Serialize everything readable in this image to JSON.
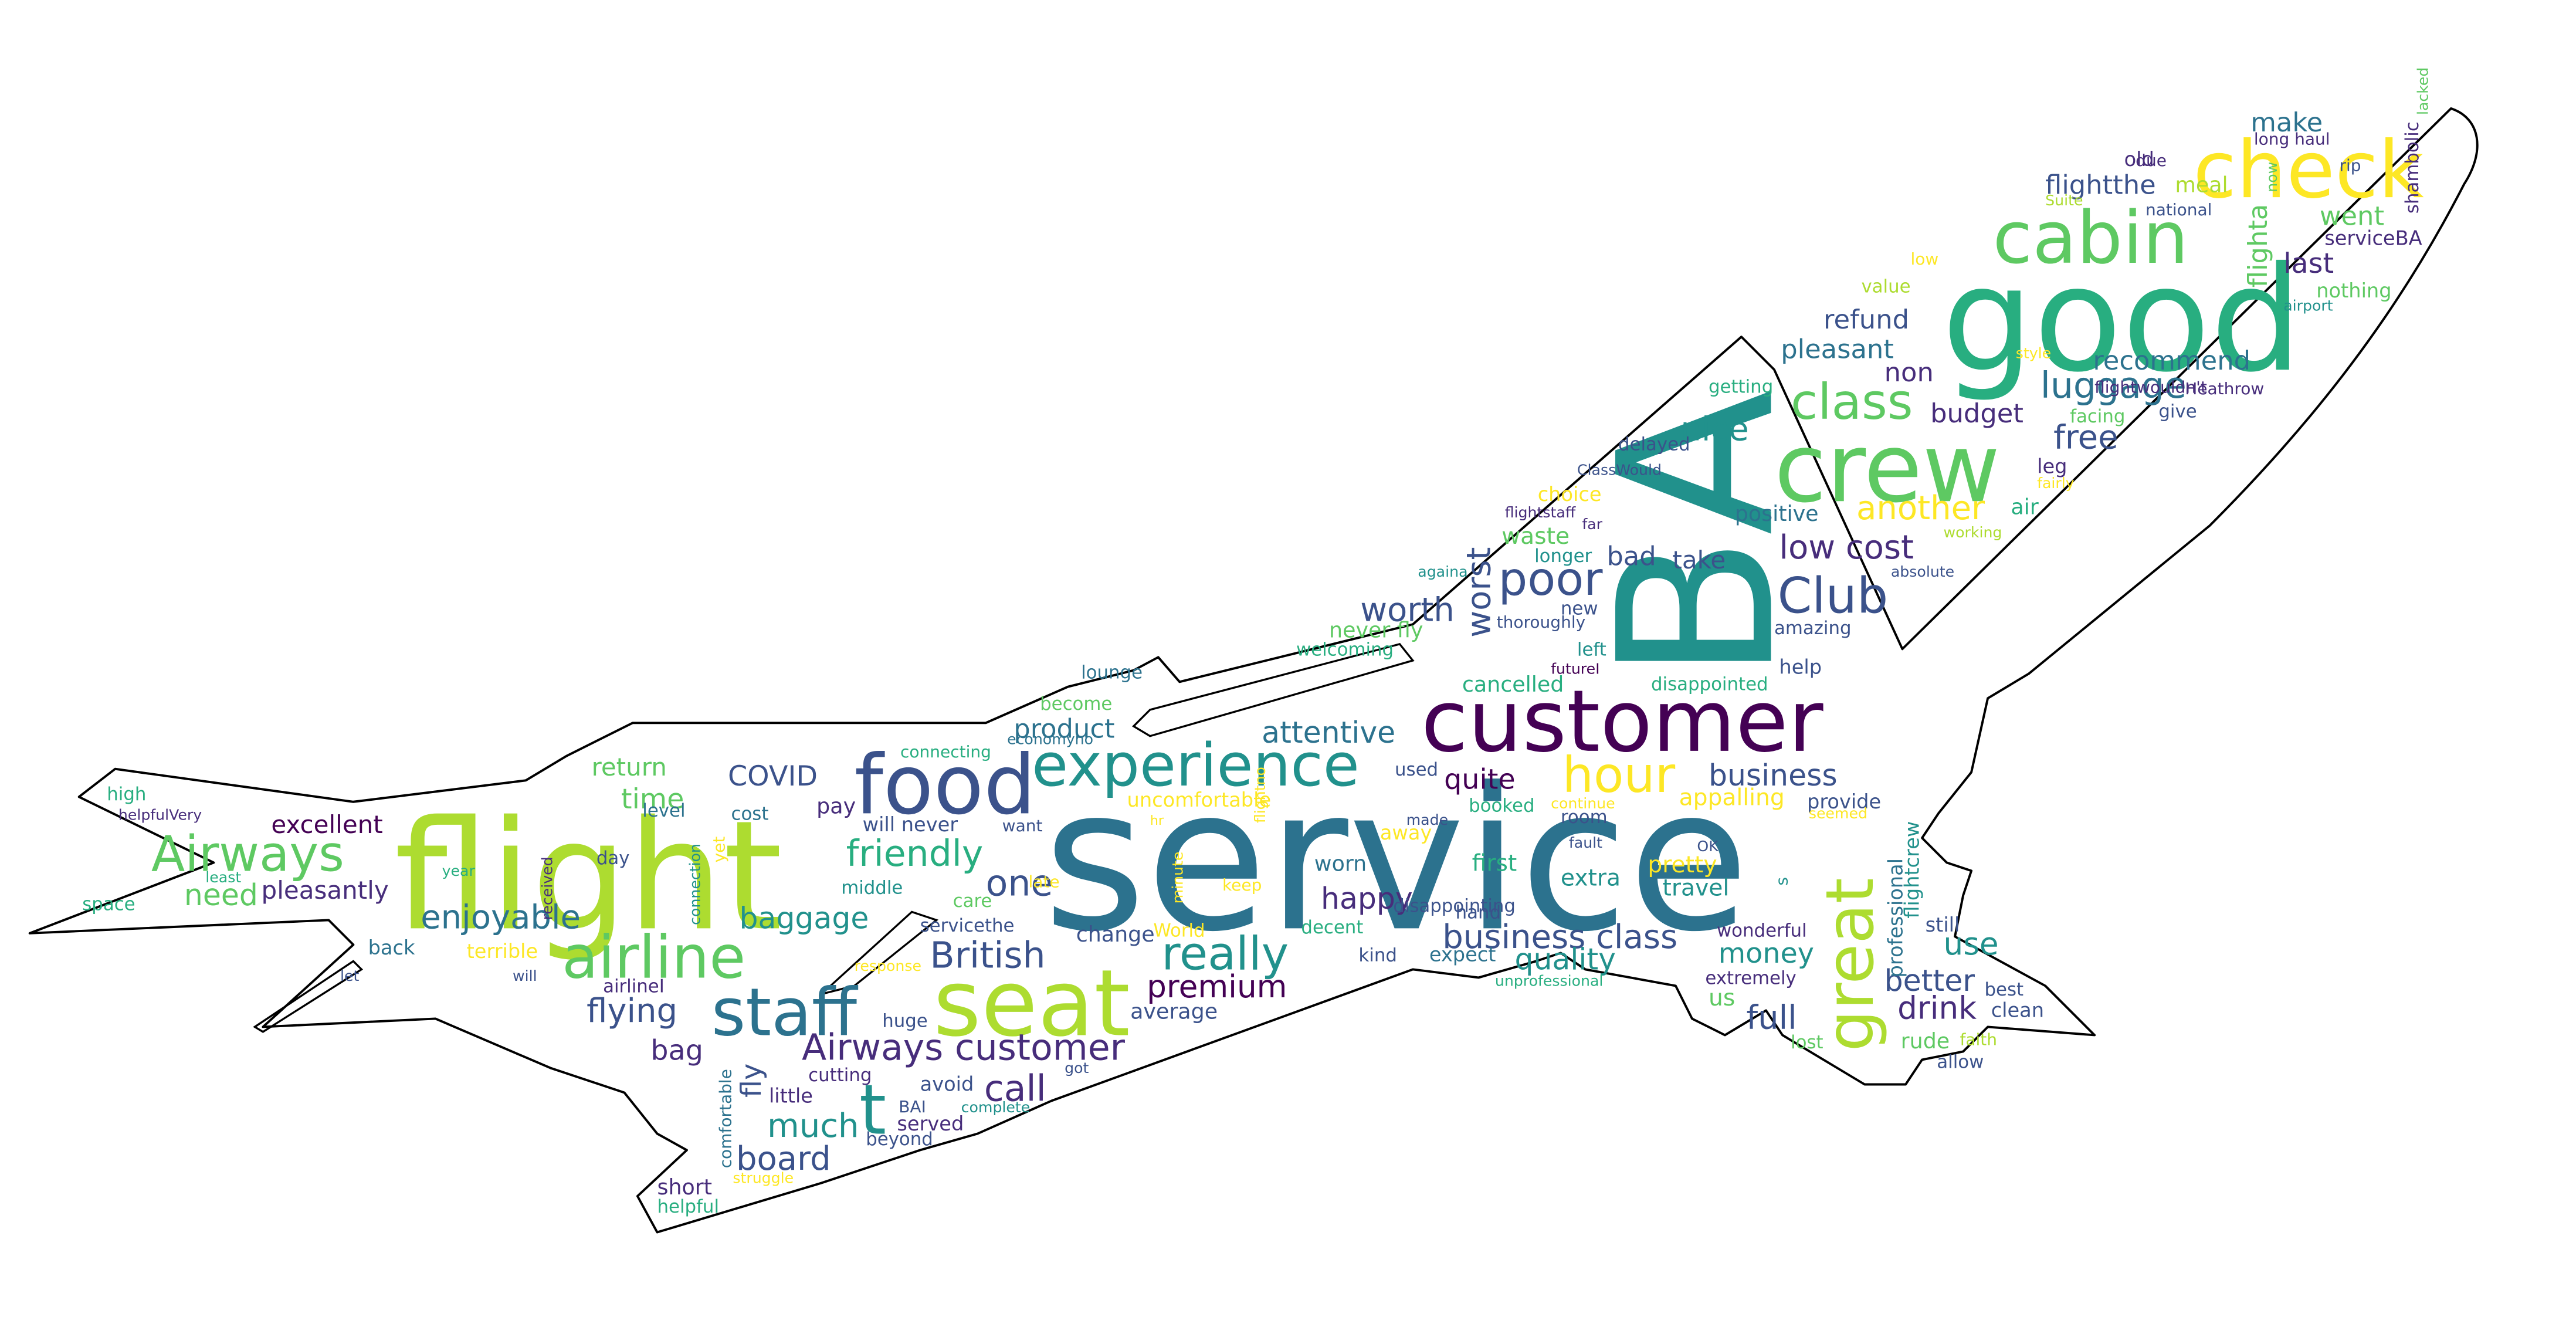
{
  "colors": {
    "outline": "#000000",
    "background": "#ffffff",
    "palette": [
      "#440154",
      "#472d7b",
      "#3b528b",
      "#2c728e",
      "#21918c",
      "#28ae80",
      "#5ec962",
      "#addc30",
      "#fde725"
    ]
  },
  "words": [
    {
      "text": "service",
      "color": "#2c728e"
    },
    {
      "text": "BA",
      "color": "#21918c"
    },
    {
      "text": "flight",
      "color": "#addc30"
    },
    {
      "text": "good",
      "color": "#28ae80"
    },
    {
      "text": "customer",
      "color": "#440154"
    },
    {
      "text": "crew",
      "color": "#5ec962"
    },
    {
      "text": "check",
      "color": "#fde725"
    },
    {
      "text": "seat",
      "color": "#addc30"
    },
    {
      "text": "food",
      "color": "#3b528b"
    },
    {
      "text": "cabin",
      "color": "#5ec962"
    },
    {
      "text": "great",
      "color": "#addc30"
    },
    {
      "text": "experience",
      "color": "#21918c"
    },
    {
      "text": "staff",
      "color": "#2c728e"
    },
    {
      "text": "airline",
      "color": "#5ec962"
    },
    {
      "text": "Airways",
      "color": "#5ec962"
    },
    {
      "text": "t",
      "color": "#21918c"
    },
    {
      "text": "hour",
      "color": "#fde725"
    },
    {
      "text": "Club",
      "color": "#3b528b"
    },
    {
      "text": "poor",
      "color": "#3b528b"
    },
    {
      "text": "class",
      "color": "#5ec962"
    },
    {
      "text": "really",
      "color": "#21918c"
    },
    {
      "text": "Airways customer",
      "color": "#472d7b"
    },
    {
      "text": "business class",
      "color": "#3b528b"
    },
    {
      "text": "British",
      "color": "#3b528b"
    },
    {
      "text": "friendly",
      "color": "#28ae80"
    },
    {
      "text": "luggage",
      "color": "#2c728e"
    },
    {
      "text": "enjoyable",
      "color": "#2c728e"
    },
    {
      "text": "flying",
      "color": "#3b528b"
    },
    {
      "text": "board",
      "color": "#3b528b"
    },
    {
      "text": "much",
      "color": "#21918c"
    },
    {
      "text": "premium",
      "color": "#440154"
    },
    {
      "text": "worth",
      "color": "#3b528b"
    },
    {
      "text": "worst",
      "color": "#3b528b"
    },
    {
      "text": "low cost",
      "color": "#472d7b"
    },
    {
      "text": "another",
      "color": "#fde725"
    },
    {
      "text": "nice",
      "color": "#21918c"
    },
    {
      "text": "budget",
      "color": "#472d7b"
    },
    {
      "text": "free",
      "color": "#3b528b"
    },
    {
      "text": "business",
      "color": "#3b528b"
    },
    {
      "text": "money",
      "color": "#21918c"
    },
    {
      "text": "full",
      "color": "#3b528b"
    },
    {
      "text": "drink",
      "color": "#472d7b"
    },
    {
      "text": "better",
      "color": "#3b528b"
    },
    {
      "text": "use",
      "color": "#21918c"
    },
    {
      "text": "quality",
      "color": "#21918c"
    },
    {
      "text": "happy",
      "color": "#472d7b"
    },
    {
      "text": "call",
      "color": "#472d7b"
    },
    {
      "text": "one",
      "color": "#3b528b"
    },
    {
      "text": "baggage",
      "color": "#21918c"
    },
    {
      "text": "need",
      "color": "#5ec962"
    },
    {
      "text": "time",
      "color": "#5ec962"
    },
    {
      "text": "COVID",
      "color": "#3b528b"
    },
    {
      "text": "return",
      "color": "#5ec962"
    },
    {
      "text": "excellent",
      "color": "#440154"
    },
    {
      "text": "pleasantly",
      "color": "#472d7b"
    },
    {
      "text": "bag",
      "color": "#472d7b"
    },
    {
      "text": "fly",
      "color": "#3b528b"
    },
    {
      "text": "quite",
      "color": "#440154"
    },
    {
      "text": "attentive",
      "color": "#2c728e"
    },
    {
      "text": "product",
      "color": "#2c728e"
    },
    {
      "text": "recommend",
      "color": "#2c728e"
    },
    {
      "text": "refund",
      "color": "#3b528b"
    },
    {
      "text": "pleasant",
      "color": "#2c728e"
    },
    {
      "text": "went",
      "color": "#5ec962"
    },
    {
      "text": "last",
      "color": "#472d7b"
    },
    {
      "text": "make",
      "color": "#2c728e"
    },
    {
      "text": "flightthe",
      "color": "#3b528b"
    },
    {
      "text": "flighta",
      "color": "#5ec962"
    },
    {
      "text": "non",
      "color": "#472d7b"
    },
    {
      "text": "bad",
      "color": "#3b528b"
    },
    {
      "text": "take",
      "color": "#3b528b"
    },
    {
      "text": "positive",
      "color": "#2c728e"
    },
    {
      "text": "waste",
      "color": "#5ec962"
    },
    {
      "text": "never fly",
      "color": "#5ec962"
    },
    {
      "text": "cancelled",
      "color": "#28ae80"
    },
    {
      "text": "appalling",
      "color": "#fde725"
    },
    {
      "text": "provide",
      "color": "#3b528b"
    },
    {
      "text": "pretty",
      "color": "#fde725"
    },
    {
      "text": "travel",
      "color": "#21918c"
    },
    {
      "text": "extra",
      "color": "#21918c"
    },
    {
      "text": "worn",
      "color": "#2c728e"
    },
    {
      "text": "first",
      "color": "#28ae80"
    },
    {
      "text": "average",
      "color": "#3b528b"
    },
    {
      "text": "change",
      "color": "#3b528b"
    },
    {
      "text": "uncomfortable",
      "color": "#fde725"
    },
    {
      "text": "nothing",
      "color": "#5ec962"
    },
    {
      "text": "serviceBA",
      "color": "#472d7b"
    },
    {
      "text": "shambolic",
      "color": "#472d7b"
    },
    {
      "text": "old",
      "color": "#472d7b"
    },
    {
      "text": "meal",
      "color": "#addc30"
    },
    {
      "text": "us",
      "color": "#5ec962"
    },
    {
      "text": "rude",
      "color": "#5ec962"
    },
    {
      "text": "allow",
      "color": "#3b528b"
    },
    {
      "text": "clean",
      "color": "#3b528b"
    },
    {
      "text": "best",
      "color": "#3b528b"
    },
    {
      "text": "still",
      "color": "#3b528b"
    },
    {
      "text": "professional",
      "color": "#2c728e"
    },
    {
      "text": "flightcrew",
      "color": "#21918c"
    },
    {
      "text": "help",
      "color": "#3b528b"
    },
    {
      "text": "amazing",
      "color": "#3b528b"
    },
    {
      "text": "left",
      "color": "#21918c"
    },
    {
      "text": "new",
      "color": "#3b528b"
    },
    {
      "text": "thoroughly",
      "color": "#3b528b"
    },
    {
      "text": "welcoming",
      "color": "#28ae80"
    },
    {
      "text": "disappointed",
      "color": "#28ae80"
    },
    {
      "text": "longer",
      "color": "#21918c"
    },
    {
      "text": "choice",
      "color": "#fde725"
    },
    {
      "text": "delayed",
      "color": "#3b528b"
    },
    {
      "text": "getting",
      "color": "#28ae80"
    },
    {
      "text": "value",
      "color": "#addc30"
    },
    {
      "text": "low",
      "color": "#fde725"
    },
    {
      "text": "facing",
      "color": "#5ec962"
    },
    {
      "text": "give",
      "color": "#3b528b"
    },
    {
      "text": "leg",
      "color": "#472d7b"
    },
    {
      "text": "air",
      "color": "#28ae80"
    },
    {
      "text": "lounge",
      "color": "#2c728e"
    },
    {
      "text": "become",
      "color": "#5ec962"
    },
    {
      "text": "connecting",
      "color": "#28ae80"
    },
    {
      "text": "pay",
      "color": "#472d7b"
    },
    {
      "text": "will never",
      "color": "#3b528b"
    },
    {
      "text": "cost",
      "color": "#2c728e"
    },
    {
      "text": "want",
      "color": "#3b528b"
    },
    {
      "text": "away",
      "color": "#fde725"
    },
    {
      "text": "used",
      "color": "#3b528b"
    },
    {
      "text": "booked",
      "color": "#28ae80"
    },
    {
      "text": "room",
      "color": "#3b528b"
    },
    {
      "text": "hand",
      "color": "#3b528b"
    },
    {
      "text": "wonderful",
      "color": "#472d7b"
    },
    {
      "text": "extremely",
      "color": "#472d7b"
    },
    {
      "text": "expect",
      "color": "#2c728e"
    },
    {
      "text": "kind",
      "color": "#3b528b"
    },
    {
      "text": "decent",
      "color": "#28ae80"
    },
    {
      "text": "keep",
      "color": "#fde725"
    },
    {
      "text": "World",
      "color": "#fde725"
    },
    {
      "text": "care",
      "color": "#5ec962"
    },
    {
      "text": "servicethe",
      "color": "#3b528b"
    },
    {
      "text": "middle",
      "color": "#21918c"
    },
    {
      "text": "huge",
      "color": "#3b528b"
    },
    {
      "text": "avoid",
      "color": "#3b528b"
    },
    {
      "text": "cutting",
      "color": "#472d7b"
    },
    {
      "text": "little",
      "color": "#472d7b"
    },
    {
      "text": "served",
      "color": "#472d7b"
    },
    {
      "text": "beyond",
      "color": "#3b528b"
    },
    {
      "text": "short",
      "color": "#472d7b"
    },
    {
      "text": "helpful",
      "color": "#28ae80"
    },
    {
      "text": "comfortable",
      "color": "#2c728e"
    },
    {
      "text": "day",
      "color": "#3b528b"
    },
    {
      "text": "back",
      "color": "#2c728e"
    },
    {
      "text": "terrible",
      "color": "#fde725"
    },
    {
      "text": "airlineI",
      "color": "#472d7b"
    },
    {
      "text": "space",
      "color": "#28ae80"
    },
    {
      "text": "high",
      "color": "#28ae80"
    },
    {
      "text": "lost",
      "color": "#5ec962"
    },
    {
      "text": "faith",
      "color": "#addc30"
    },
    {
      "text": "national",
      "color": "#3b528b"
    },
    {
      "text": "rip",
      "color": "#3b528b"
    },
    {
      "text": "long haul",
      "color": "#472d7b"
    },
    {
      "text": "due",
      "color": "#472d7b"
    },
    {
      "text": "Suite",
      "color": "#addc30"
    },
    {
      "text": "airport",
      "color": "#21918c"
    },
    {
      "text": "style",
      "color": "#fde725"
    },
    {
      "text": "flightwouldn't",
      "color": "#472d7b"
    },
    {
      "text": "Heathrow",
      "color": "#472d7b"
    },
    {
      "text": "fairly",
      "color": "#fde725"
    },
    {
      "text": "working",
      "color": "#addc30"
    },
    {
      "text": "absolute",
      "color": "#3b528b"
    },
    {
      "text": "lacked",
      "color": "#5ec962"
    },
    {
      "text": "now",
      "color": "#5ec962"
    },
    {
      "text": "ClassWould",
      "color": "#3b528b"
    },
    {
      "text": "flightstaff",
      "color": "#472d7b"
    },
    {
      "text": "far",
      "color": "#472d7b"
    },
    {
      "text": "againa",
      "color": "#21918c"
    },
    {
      "text": "futureI",
      "color": "#440154"
    },
    {
      "text": "economyno",
      "color": "#2c728e"
    },
    {
      "text": "hr",
      "color": "#fde725"
    },
    {
      "text": "flightno",
      "color": "#fde725"
    },
    {
      "text": "minute",
      "color": "#fde725"
    },
    {
      "text": "made",
      "color": "#3b528b"
    },
    {
      "text": "disappointing",
      "color": "#3b528b"
    },
    {
      "text": "continue",
      "color": "#fde725"
    },
    {
      "text": "seemed",
      "color": "#fde725"
    },
    {
      "text": "fault",
      "color": "#3b528b"
    },
    {
      "text": "OK",
      "color": "#3b528b"
    },
    {
      "text": "s",
      "color": "#21918c"
    },
    {
      "text": "unprofessional",
      "color": "#28ae80"
    },
    {
      "text": "got",
      "color": "#3b528b"
    },
    {
      "text": "complete",
      "color": "#21918c"
    },
    {
      "text": "BAI",
      "color": "#3b528b"
    },
    {
      "text": "struggle",
      "color": "#fde725"
    },
    {
      "text": "response",
      "color": "#fde725"
    },
    {
      "text": "let",
      "color": "#3b528b"
    },
    {
      "text": "will",
      "color": "#3b528b"
    },
    {
      "text": "late",
      "color": "#fde725"
    },
    {
      "text": "yet",
      "color": "#fde725"
    },
    {
      "text": "connection",
      "color": "#21918c"
    },
    {
      "text": "received",
      "color": "#472d7b"
    },
    {
      "text": "year",
      "color": "#28ae80"
    },
    {
      "text": "least",
      "color": "#28ae80"
    },
    {
      "text": "helpfulVery",
      "color": "#472d7b"
    },
    {
      "text": "level",
      "color": "#2c728e"
    }
  ]
}
